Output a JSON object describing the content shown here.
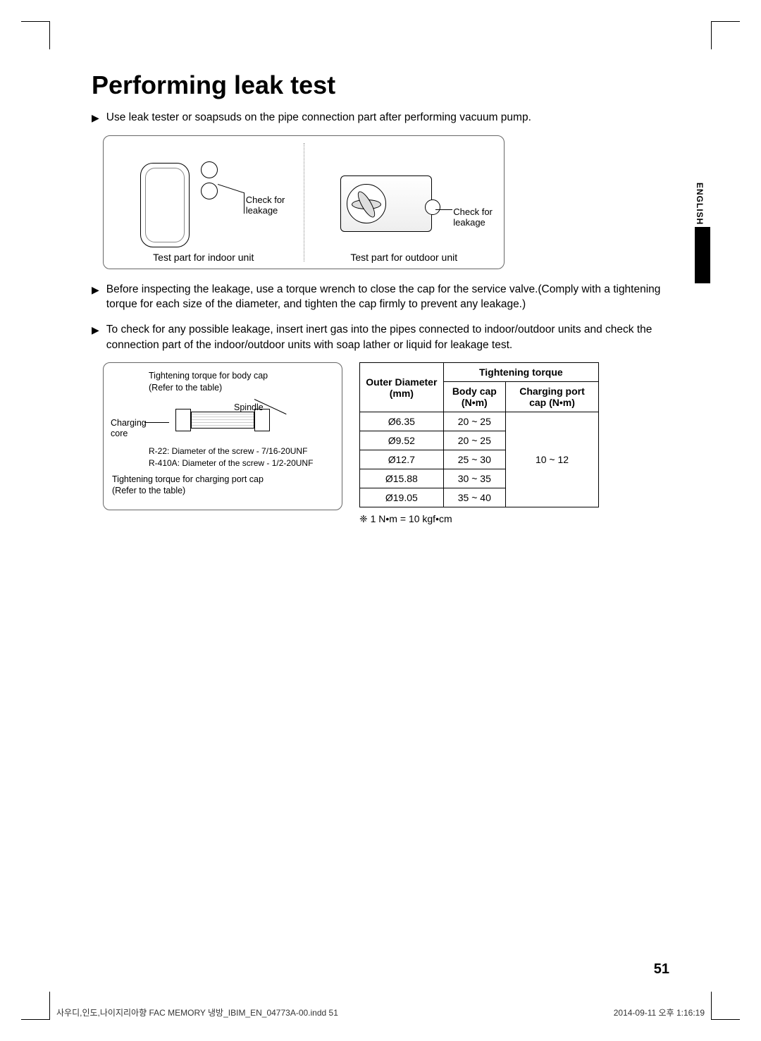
{
  "title": "Performing leak test",
  "bullets": [
    "Use leak tester or soapsuds on the pipe connection part after performing vacuum pump.",
    "Before inspecting the leakage, use a torque wrench to close the cap for the service valve.(Comply with a tightening torque for each size of the diameter, and tighten the cap firmly to prevent any leakage.)",
    "To check for any possible leakage, insert inert gas into the pipes connected to indoor/outdoor units and check the connection part of the indoor/outdoor units with soap lather or liquid for leakage test."
  ],
  "figure1": {
    "check_leakage": "Check for leakage",
    "indoor_caption": "Test part for indoor unit",
    "outdoor_caption": "Test part for outdoor unit"
  },
  "figure2": {
    "top_label": "Tightening torque for body cap\n(Refer to the table)",
    "spindle": "Spindle",
    "charging_core": "Charging core",
    "screw_r22": "R-22: Diameter of the screw - 7/16-20UNF",
    "screw_r410a": "R-410A: Diameter of the screw - 1/2-20UNF",
    "bottom_label": "Tightening torque for charging port cap\n(Refer to the table)"
  },
  "table": {
    "header_outer": "Outer Diameter (mm)",
    "header_torque": "Tightening torque",
    "header_body": "Body cap (N•m)",
    "header_charging": "Charging port cap (N•m)",
    "rows": [
      {
        "dia": "Ø6.35",
        "body": "20 ~ 25"
      },
      {
        "dia": "Ø9.52",
        "body": "20 ~ 25"
      },
      {
        "dia": "Ø12.7",
        "body": "25 ~ 30"
      },
      {
        "dia": "Ø15.88",
        "body": "30 ~ 35"
      },
      {
        "dia": "Ø19.05",
        "body": "35 ~ 40"
      }
    ],
    "charging_val": "10 ~ 12"
  },
  "conversion": "❈   1 N•m = 10 kgf•cm",
  "side_tab": "ENGLISH",
  "page_number": "51",
  "footer_left": "사우디,인도,나이지리아향 FAC MEMORY 냉방_IBIM_EN_04773A-00.indd   51",
  "footer_right": "2014-09-11   오후 1:16:19"
}
